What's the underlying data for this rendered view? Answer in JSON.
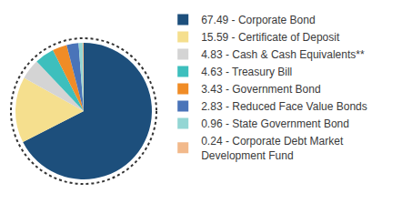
{
  "chart_data": {
    "type": "pie",
    "categories": [
      "67.49 - Corporate Bond",
      "15.59 - Certificate of Deposit",
      "4.83 - Cash & Cash Equivalents**",
      "4.63 - Treasury Bill",
      "3.43 - Government Bond",
      "2.83 - Reduced Face Value Bonds",
      "0.96 - State Government Bond",
      "0.24 - Corporate Debt Market Development Fund"
    ],
    "values": [
      67.49,
      15.59,
      4.83,
      4.63,
      3.43,
      2.83,
      0.96,
      0.24
    ],
    "colors": [
      "#1d4f7c",
      "#f5df8e",
      "#d4d4d4",
      "#3dbfbd",
      "#f08c26",
      "#4a74b9",
      "#93d6d4",
      "#f2b98b"
    ],
    "legend": "right",
    "data_labels": false
  }
}
